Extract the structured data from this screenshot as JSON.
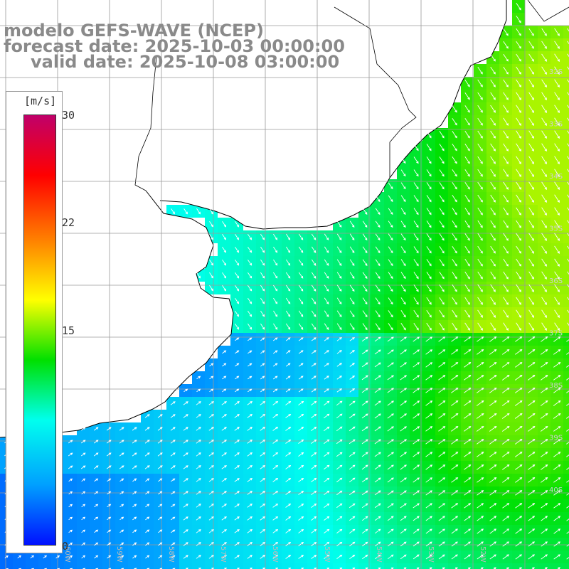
{
  "title": {
    "model": "modelo GEFS-WAVE (NCEP)",
    "forecast": "forecast date: 2025-10-03 00:00:00",
    "valid": "valid date: 2025-10-08 03:00:00"
  },
  "colorbar": {
    "unit": "[m/s]",
    "min": 0,
    "max": 30,
    "ticks": [
      {
        "label": "30",
        "value": 30
      },
      {
        "label": "22",
        "value": 22
      },
      {
        "label": "15",
        "value": 15
      },
      {
        "label": "0",
        "value": 0
      }
    ],
    "stops": [
      "#0010ff",
      "#00a0ff",
      "#00ffee",
      "#00e000",
      "#ffff00",
      "#ff8000",
      "#ff0000",
      "#c0006a"
    ]
  },
  "map": {
    "lat_labels": [
      "32S",
      "33S",
      "34S",
      "35S",
      "36S",
      "37S",
      "38S",
      "39S",
      "40S"
    ],
    "lon_labels": [
      "60W",
      "59W",
      "58W",
      "57W",
      "56W",
      "55W",
      "54W",
      "53W",
      "52W"
    ],
    "land_color": "#ffffff",
    "coast_color": "#000000",
    "grid_color": "#9a9a9a",
    "arrow_color": "#ffffff"
  }
}
